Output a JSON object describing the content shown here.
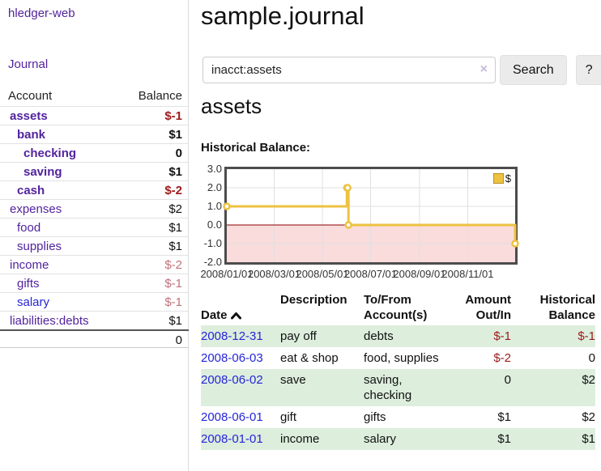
{
  "colors": {
    "purple": "#52239e",
    "blue": "#2525d8",
    "darkred": "#9e1a1a",
    "fadedred": "#c1717c",
    "black": "#111111",
    "accent_gold": "#edc240",
    "table_row_green": "#ddeedd",
    "negative_region_pink": "#fadcdc"
  },
  "sidebar": {
    "brand": "hledger-web",
    "journal_label": "Journal",
    "accounts_table": {
      "account_header": "Account",
      "balance_header": "Balance",
      "rows": [
        {
          "name": "assets",
          "balance": "$-1",
          "depth": 1,
          "bold": true,
          "name_color": "purple",
          "balance_color": "darkred"
        },
        {
          "name": "bank",
          "balance": "$1",
          "depth": 2,
          "bold": true,
          "name_color": "purple",
          "balance_color": "black"
        },
        {
          "name": "checking",
          "balance": "0",
          "depth": 3,
          "bold": true,
          "name_color": "purple",
          "balance_color": "black"
        },
        {
          "name": "saving",
          "balance": "$1",
          "depth": 3,
          "bold": true,
          "name_color": "purple",
          "balance_color": "black"
        },
        {
          "name": "cash",
          "balance": "$-2",
          "depth": 2,
          "bold": true,
          "name_color": "purple",
          "balance_color": "darkred"
        },
        {
          "name": "expenses",
          "balance": "$2",
          "depth": 1,
          "bold": false,
          "name_color": "purple",
          "balance_color": "black"
        },
        {
          "name": "food",
          "balance": "$1",
          "depth": 2,
          "bold": false,
          "name_color": "purple",
          "balance_color": "black"
        },
        {
          "name": "supplies",
          "balance": "$1",
          "depth": 2,
          "bold": false,
          "name_color": "purple",
          "balance_color": "black"
        },
        {
          "name": "income",
          "balance": "$-2",
          "depth": 1,
          "bold": false,
          "name_color": "purple",
          "balance_color": "fadedred"
        },
        {
          "name": "gifts",
          "balance": "$-1",
          "depth": 2,
          "bold": false,
          "name_color": "purple",
          "balance_color": "fadedred"
        },
        {
          "name": "salary",
          "balance": "$-1",
          "depth": 2,
          "bold": false,
          "name_color": "blue",
          "balance_color": "fadedred"
        },
        {
          "name": "liabilities:debts",
          "balance": "$1",
          "depth": 1,
          "bold": false,
          "name_color": "purple",
          "balance_color": "black"
        }
      ],
      "total": "0"
    }
  },
  "header": {
    "title": "sample.journal"
  },
  "search": {
    "value": "inacct:assets",
    "clear_icon": "×",
    "button_label": "Search",
    "help_label": "?"
  },
  "main": {
    "account_title": "assets",
    "chart_label": "Historical Balance:"
  },
  "chart_data": {
    "type": "line",
    "line_style": "step",
    "title": "Historical Balance",
    "series": [
      {
        "name": "$",
        "color": "#edc240",
        "points": [
          [
            "2008-01-01",
            1
          ],
          [
            "2008-06-01",
            2
          ],
          [
            "2008-06-02",
            2
          ],
          [
            "2008-06-03",
            0
          ],
          [
            "2008-12-31",
            -1
          ]
        ]
      }
    ],
    "ylim": [
      -2,
      3
    ],
    "yticks": [
      3.0,
      2.0,
      1.0,
      0.0,
      -1.0,
      -2.0
    ],
    "xticks": [
      "2008/01/01",
      "2008/03/01",
      "2008/05/01",
      "2008/07/01",
      "2008/09/01",
      "2008/11/01"
    ],
    "x_end": "2008-12-31",
    "grid": true,
    "legend_position": "top-right",
    "negative_region_fill": "#fadcdc",
    "zero_line_color": "#8b0000",
    "marker": "hollow-circle"
  },
  "register_table": {
    "headers": {
      "date": "Date",
      "description": "Description",
      "tofrom": "To/From\nAccount(s)",
      "amount": "Amount\nOut/In",
      "balance": "Historical\nBalance"
    },
    "sort_icon": "chevron-up",
    "rows": [
      {
        "date": "2008-12-31",
        "description": "pay off",
        "accounts": "debts",
        "amount": "$-1",
        "balance": "$-1",
        "amount_color": "darkred",
        "balance_color": "darkred"
      },
      {
        "date": "2008-06-03",
        "description": "eat & shop",
        "accounts": "food, supplies",
        "amount": "$-2",
        "balance": "0",
        "amount_color": "darkred",
        "balance_color": "black"
      },
      {
        "date": "2008-06-02",
        "description": "save",
        "accounts": "saving, checking",
        "amount": "0",
        "balance": "$2",
        "amount_color": "black",
        "balance_color": "black"
      },
      {
        "date": "2008-06-01",
        "description": "gift",
        "accounts": "gifts",
        "amount": "$1",
        "balance": "$2",
        "amount_color": "black",
        "balance_color": "black"
      },
      {
        "date": "2008-01-01",
        "description": "income",
        "accounts": "salary",
        "amount": "$1",
        "balance": "$1",
        "amount_color": "black",
        "balance_color": "black"
      }
    ]
  }
}
